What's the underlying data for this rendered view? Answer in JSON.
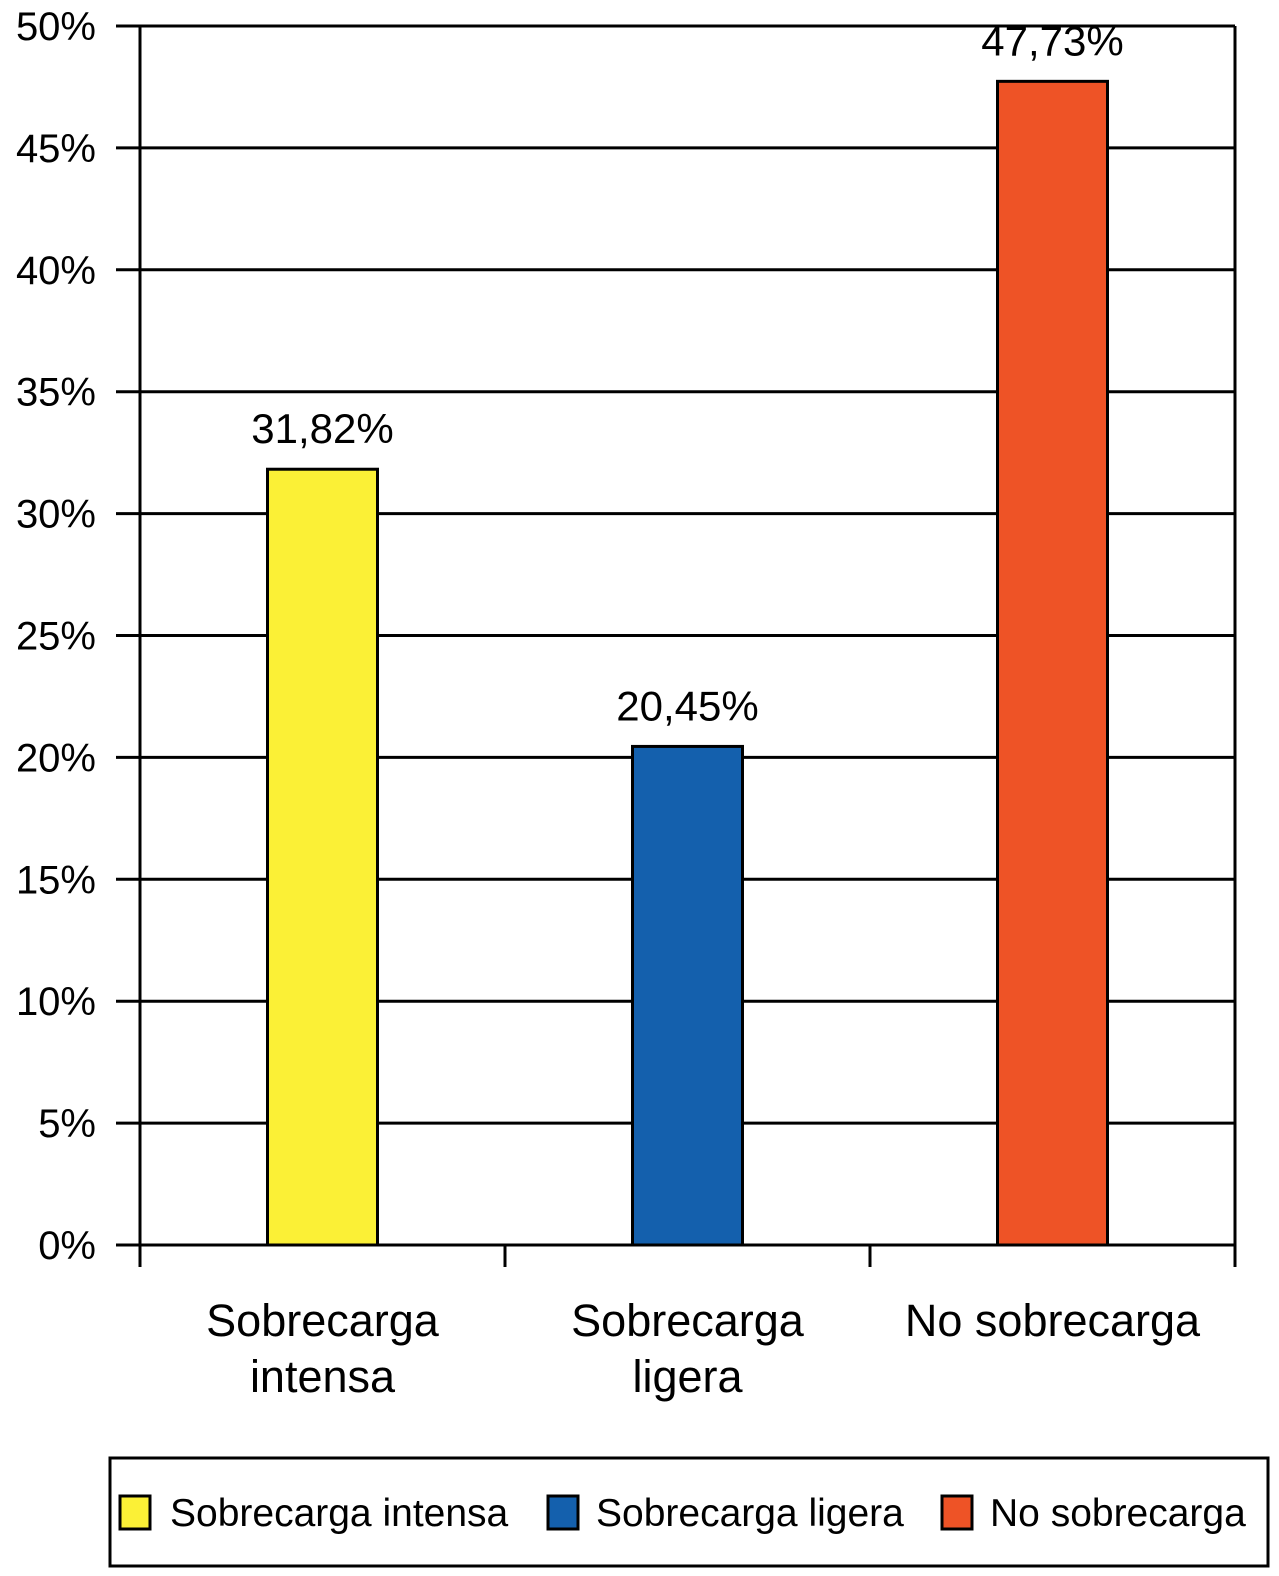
{
  "chart_data": {
    "type": "bar",
    "categories": [
      "Sobrecarga intensa",
      "Sobrecarga ligera",
      "No sobrecarga"
    ],
    "category_labels": [
      [
        "Sobrecarga",
        "intensa"
      ],
      [
        "Sobrecarga",
        "ligera"
      ],
      [
        "No sobrecarga"
      ]
    ],
    "values": [
      31.82,
      20.45,
      47.73
    ],
    "data_labels": [
      "31,82%",
      "20,45%",
      "47,73%"
    ],
    "colors": [
      "#fbf036",
      "#1460ad",
      "#ee5326"
    ],
    "yticks": [
      "0%",
      "5%",
      "10%",
      "15%",
      "20%",
      "25%",
      "30%",
      "35%",
      "40%",
      "45%",
      "50%"
    ],
    "ylim": [
      0,
      50
    ],
    "grid": true,
    "legend": {
      "position": "bottom",
      "entries": [
        "Sobrecarga intensa",
        "Sobrecarga ligera",
        "No sobrecarga"
      ]
    },
    "title": "",
    "xlabel": "",
    "ylabel": ""
  }
}
